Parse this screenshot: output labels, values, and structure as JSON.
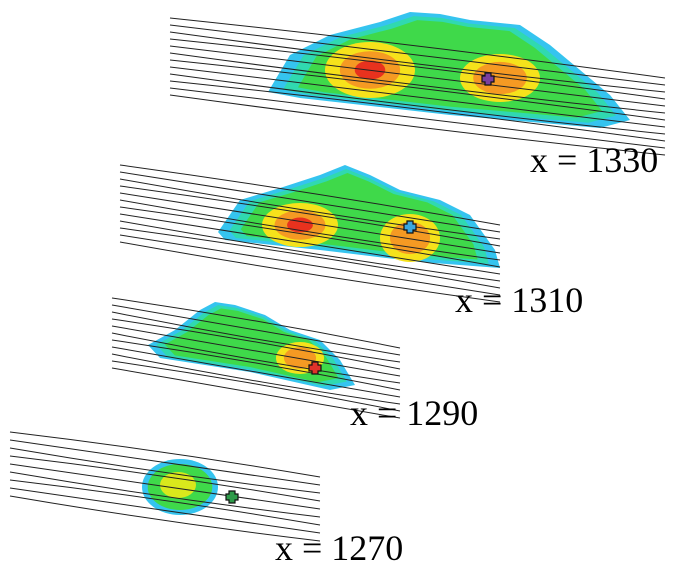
{
  "panels": [
    {
      "label": "x = 1330",
      "marker_color": "#7b3f9e"
    },
    {
      "label": "x = 1310",
      "marker_color": "#3aa6e0"
    },
    {
      "label": "x = 1290",
      "marker_color": "#e0332a"
    },
    {
      "label": "x = 1270",
      "marker_color": "#2e9b4a"
    }
  ]
}
